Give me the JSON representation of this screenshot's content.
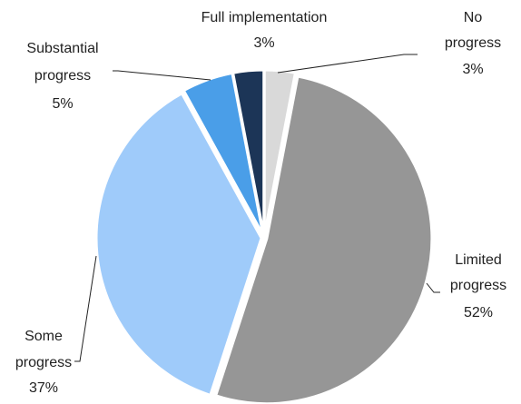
{
  "chart_data": {
    "type": "pie",
    "categories": [
      "No progress",
      "Limited progress",
      "Some progress",
      "Substantial progress",
      "Full implementation"
    ],
    "values": [
      3,
      52,
      37,
      5,
      3
    ],
    "value_labels": [
      "3%",
      "52%",
      "37%",
      "5%",
      "3%"
    ],
    "colors": [
      "#d9d9d9",
      "#969696",
      "#9fcbfa",
      "#4a9ee8",
      "#1c3557"
    ]
  }
}
